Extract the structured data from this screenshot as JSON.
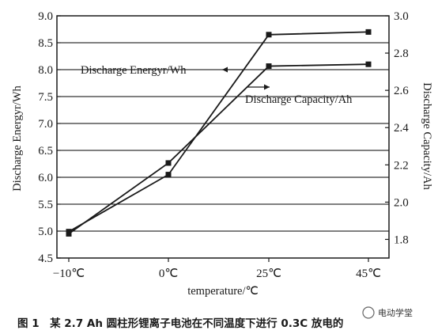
{
  "chart_data": {
    "type": "line",
    "categories": [
      "−10℃",
      "0℃",
      "25℃",
      "45℃"
    ],
    "xlabel": "temperature/℃",
    "ylabel_left": "Discharge Energyr/Wh",
    "ylabel_right": "Discharge Capacity/Ah",
    "ylim_left": [
      4.5,
      9.0
    ],
    "yticks_left": [
      "4.5",
      "5.0",
      "5.5",
      "6.0",
      "6.5",
      "7.0",
      "7.5",
      "8.0",
      "8.5",
      "9.0"
    ],
    "ylim_right": [
      1.7,
      3.0
    ],
    "yticks_right": [
      "1.8",
      "2.0",
      "2.2",
      "2.4",
      "2.6",
      "2.8",
      "3.0"
    ],
    "grid": "horizontal",
    "series": [
      {
        "name": "Discharge Energyr/Wh",
        "axis": "left",
        "values": [
          4.99,
          6.05,
          8.65,
          8.7
        ],
        "annotation_side": "left"
      },
      {
        "name": "Discharge Capacity/Ah",
        "axis": "right",
        "values": [
          1.83,
          2.21,
          2.73,
          2.74
        ],
        "annotation_side": "right"
      }
    ]
  },
  "caption": "图 1　某 2.7 Ah 圆柱形锂离子电池在不同温度下进行 0.3C 放电的",
  "watermark": "电动学堂",
  "colors": {
    "line": "#1a1a1a",
    "grid": "#000000",
    "text": "#1a1a1a"
  }
}
